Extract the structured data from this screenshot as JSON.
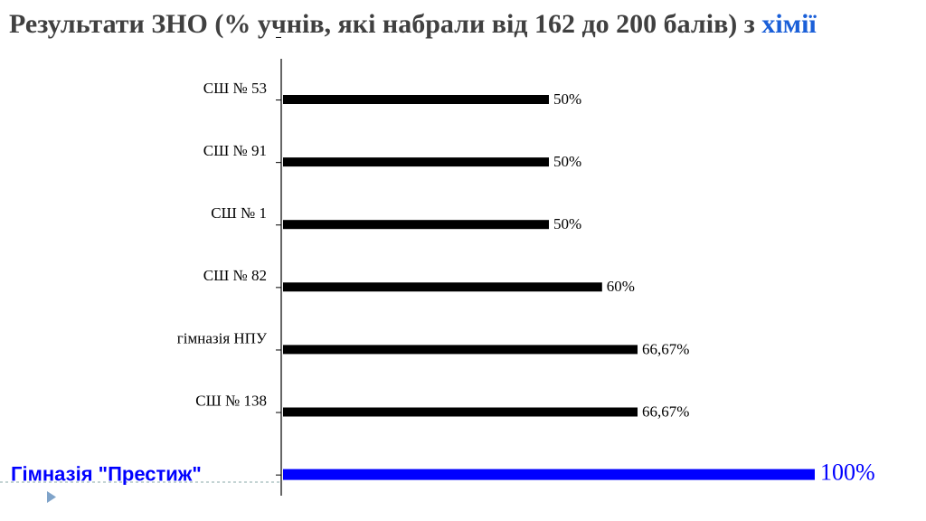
{
  "chart_data": {
    "type": "bar",
    "orientation": "horizontal",
    "title": "Результати ЗНО (% учнів, які набрали від 162 до 200 балів) з",
    "title_highlight": "хімії",
    "categories": [
      "СШ № 53",
      "СШ № 91",
      "СШ № 1",
      "СШ № 82",
      "гімназія НПУ",
      "СШ № 138",
      "Гімназія \"Престиж\""
    ],
    "values": [
      50,
      50,
      50,
      60,
      66.67,
      66.67,
      100
    ],
    "value_labels": [
      "50%",
      "50%",
      "50%",
      "60%",
      "66,67%",
      "66,67%",
      "100%"
    ],
    "color": "#000000",
    "highlight": {
      "index": 6,
      "color": "#0000ff"
    },
    "xlim": [
      0,
      100
    ]
  }
}
